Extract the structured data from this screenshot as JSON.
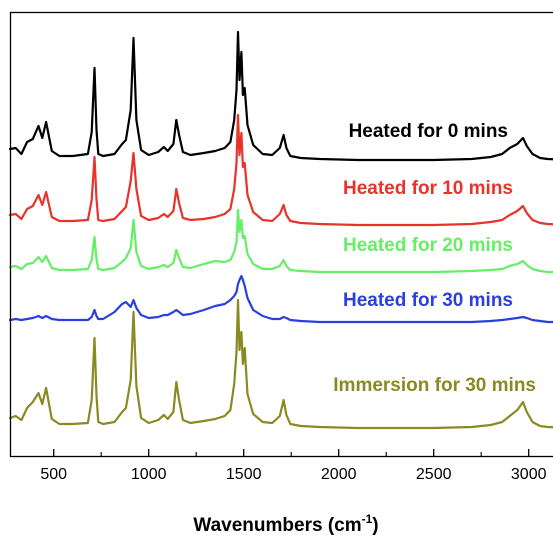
{
  "chart_data": {
    "type": "line",
    "title": "",
    "xlabel": "Wavenumbers (cm",
    "xlabel_superscript": "-1",
    "xlabel_close": ")",
    "ylabel": "",
    "xlim": [
      270,
      3200
    ],
    "y_ticks_shown": false,
    "grid": false,
    "legend": "labels next to each trace, right side",
    "x_ticks": [
      500,
      1000,
      1500,
      2000,
      2500,
      3000
    ],
    "x_tick_labels": [
      "500",
      "1000",
      "1500",
      "2000",
      "2500",
      "3000"
    ],
    "peaks_cm1": [
      400,
      460,
      720,
      870,
      920,
      1070,
      1150,
      1460,
      1480,
      1500,
      1720,
      2860,
      2910,
      2970
    ],
    "series": [
      {
        "name": "Heated for 0 mins",
        "color": "#000000",
        "offset": 160,
        "x": [
          270,
          300,
          330,
          360,
          390,
          420,
          440,
          460,
          490,
          530,
          600,
          680,
          700,
          715,
          725,
          735,
          760,
          820,
          860,
          880,
          905,
          920,
          935,
          960,
          1000,
          1050,
          1080,
          1100,
          1130,
          1145,
          1160,
          1180,
          1220,
          1290,
          1350,
          1400,
          1430,
          1450,
          1462,
          1470,
          1478,
          1488,
          1496,
          1505,
          1520,
          1550,
          1600,
          1650,
          1690,
          1710,
          1725,
          1745,
          1800,
          1900,
          2100,
          2300,
          2500,
          2700,
          2800,
          2860,
          2900,
          2940,
          2970,
          2990,
          3020,
          3060,
          3100,
          3200
        ],
        "y": [
          11,
          12,
          6,
          18,
          21,
          34,
          22,
          38,
          9,
          4,
          4,
          6,
          28,
          92,
          30,
          6,
          4,
          6,
          16,
          20,
          50,
          122,
          40,
          10,
          5,
          8,
          13,
          9,
          16,
          40,
          25,
          8,
          5,
          7,
          9,
          12,
          18,
          40,
          70,
          128,
          80,
          108,
          65,
          72,
          35,
          15,
          6,
          5,
          12,
          25,
          12,
          4,
          2,
          1,
          0,
          0,
          0,
          1,
          3,
          6,
          12,
          16,
          22,
          14,
          6,
          2,
          1,
          0
        ]
      },
      {
        "name": "Heated for 10 mins",
        "color": "#e8332b",
        "offset": 225,
        "x": [
          270,
          300,
          330,
          360,
          390,
          420,
          440,
          460,
          490,
          530,
          600,
          680,
          700,
          715,
          725,
          735,
          760,
          820,
          860,
          880,
          905,
          920,
          935,
          960,
          1000,
          1050,
          1080,
          1100,
          1130,
          1145,
          1160,
          1180,
          1220,
          1290,
          1350,
          1400,
          1430,
          1450,
          1462,
          1470,
          1478,
          1488,
          1496,
          1505,
          1520,
          1550,
          1600,
          1650,
          1690,
          1710,
          1725,
          1745,
          1800,
          1900,
          2100,
          2300,
          2500,
          2700,
          2800,
          2860,
          2900,
          2940,
          2970,
          2990,
          3020,
          3060,
          3100,
          3200
        ],
        "y": [
          10,
          11,
          6,
          16,
          19,
          30,
          20,
          33,
          8,
          4,
          4,
          5,
          25,
          68,
          26,
          5,
          4,
          6,
          14,
          18,
          44,
          72,
          36,
          9,
          5,
          7,
          11,
          8,
          14,
          36,
          22,
          7,
          5,
          6,
          8,
          11,
          16,
          36,
          62,
          110,
          70,
          92,
          58,
          62,
          30,
          13,
          5,
          4,
          11,
          20,
          10,
          4,
          2,
          1,
          0,
          0,
          0,
          1,
          3,
          5,
          10,
          14,
          19,
          12,
          5,
          2,
          1,
          0
        ]
      },
      {
        "name": "Heated for 20 mins",
        "color": "#66ee66",
        "offset": 272,
        "x": [
          270,
          300,
          330,
          360,
          390,
          420,
          440,
          460,
          490,
          530,
          600,
          680,
          700,
          715,
          725,
          735,
          760,
          820,
          860,
          880,
          905,
          920,
          935,
          960,
          1000,
          1050,
          1080,
          1100,
          1130,
          1145,
          1160,
          1180,
          1220,
          1290,
          1350,
          1400,
          1430,
          1450,
          1462,
          1470,
          1478,
          1488,
          1496,
          1505,
          1520,
          1550,
          1600,
          1650,
          1690,
          1710,
          1725,
          1745,
          1800,
          1900,
          2100,
          2300,
          2500,
          2700,
          2800,
          2860,
          2900,
          2940,
          2970,
          2990,
          3020,
          3060,
          3100,
          3200
        ],
        "y": [
          5,
          6,
          3,
          8,
          9,
          15,
          10,
          16,
          4,
          2,
          2,
          3,
          12,
          35,
          13,
          3,
          2,
          4,
          10,
          14,
          24,
          52,
          20,
          6,
          3,
          5,
          7,
          5,
          9,
          22,
          14,
          5,
          4,
          8,
          11,
          10,
          12,
          20,
          30,
          62,
          40,
          52,
          34,
          36,
          18,
          8,
          3,
          3,
          6,
          12,
          6,
          2,
          1,
          0,
          0,
          0,
          0,
          1,
          2,
          3,
          6,
          8,
          11,
          7,
          3,
          1,
          0,
          0
        ]
      },
      {
        "name": "Heated for 30 mins",
        "color": "#2a3fe0",
        "offset": 322,
        "x": [
          270,
          300,
          330,
          360,
          390,
          420,
          440,
          460,
          490,
          530,
          600,
          680,
          700,
          715,
          725,
          735,
          760,
          820,
          860,
          880,
          905,
          920,
          935,
          960,
          1000,
          1050,
          1080,
          1100,
          1130,
          1145,
          1160,
          1180,
          1220,
          1290,
          1350,
          1400,
          1430,
          1450,
          1462,
          1470,
          1478,
          1488,
          1496,
          1505,
          1520,
          1550,
          1600,
          1650,
          1690,
          1710,
          1725,
          1745,
          1800,
          1900,
          2100,
          2300,
          2500,
          2700,
          2800,
          2860,
          2900,
          2940,
          2970,
          2990,
          3020,
          3060,
          3100,
          3200
        ],
        "y": [
          2,
          3,
          2,
          3,
          4,
          6,
          4,
          6,
          3,
          2,
          2,
          2,
          5,
          12,
          6,
          3,
          3,
          10,
          18,
          20,
          15,
          22,
          14,
          7,
          4,
          5,
          7,
          7,
          10,
          12,
          10,
          7,
          8,
          12,
          16,
          18,
          22,
          26,
          30,
          38,
          42,
          46,
          42,
          36,
          24,
          12,
          6,
          3,
          3,
          5,
          4,
          2,
          1,
          0,
          0,
          0,
          0,
          0,
          1,
          2,
          3,
          4,
          5,
          4,
          2,
          1,
          0,
          0
        ]
      },
      {
        "name": "Immersion for 30 mins",
        "color": "#8a8a22",
        "offset": 428,
        "x": [
          270,
          300,
          330,
          360,
          390,
          420,
          440,
          460,
          490,
          530,
          600,
          680,
          700,
          715,
          725,
          735,
          760,
          820,
          860,
          880,
          905,
          920,
          935,
          960,
          1000,
          1050,
          1080,
          1100,
          1130,
          1145,
          1160,
          1180,
          1220,
          1290,
          1350,
          1400,
          1430,
          1450,
          1462,
          1470,
          1478,
          1488,
          1496,
          1505,
          1520,
          1550,
          1600,
          1650,
          1690,
          1710,
          1725,
          1745,
          1800,
          1900,
          2100,
          2300,
          2500,
          2700,
          2800,
          2860,
          2900,
          2940,
          2970,
          2990,
          3020,
          3060,
          3100,
          3200
        ],
        "y": [
          10,
          12,
          8,
          20,
          26,
          35,
          24,
          40,
          9,
          4,
          4,
          5,
          28,
          90,
          32,
          6,
          4,
          6,
          16,
          20,
          48,
          116,
          42,
          10,
          5,
          8,
          13,
          9,
          16,
          46,
          28,
          8,
          5,
          7,
          9,
          12,
          18,
          44,
          76,
          128,
          78,
          96,
          64,
          80,
          34,
          14,
          6,
          5,
          12,
          28,
          13,
          4,
          2,
          1,
          0,
          0,
          0,
          1,
          3,
          6,
          12,
          18,
          26,
          16,
          6,
          2,
          1,
          0
        ]
      }
    ]
  }
}
